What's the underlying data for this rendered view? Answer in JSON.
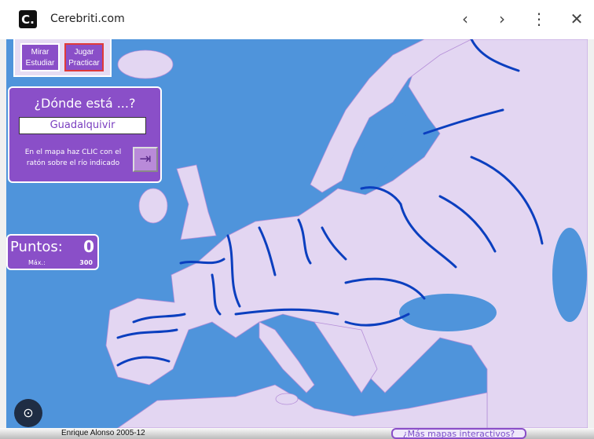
{
  "browser": {
    "site": "Cerebriti.com",
    "logo": "C.",
    "icons": [
      "chevron-left-icon",
      "chevron-right-icon",
      "more-vert-icon",
      "close-icon"
    ]
  },
  "modes": {
    "study": "Mirar Estudiar",
    "play": "Jugar Practicar",
    "active": "play"
  },
  "quiz": {
    "question": "¿Dónde está ...?",
    "target": "Guadalquivir",
    "instruction": "En el mapa haz CLIC con el ratón sobre el río indicado"
  },
  "score": {
    "label": "Puntos:",
    "value": "0",
    "max_label": "Máx.:",
    "max": "300"
  },
  "footer": {
    "author": "Enrique Alonso 2005-12",
    "more": "¿Más mapas interactivos?"
  },
  "colors": {
    "sea": "#4f94db",
    "land": "#e3d6f2",
    "river": "#0b3fbf",
    "panel": "#8a4fc8"
  }
}
